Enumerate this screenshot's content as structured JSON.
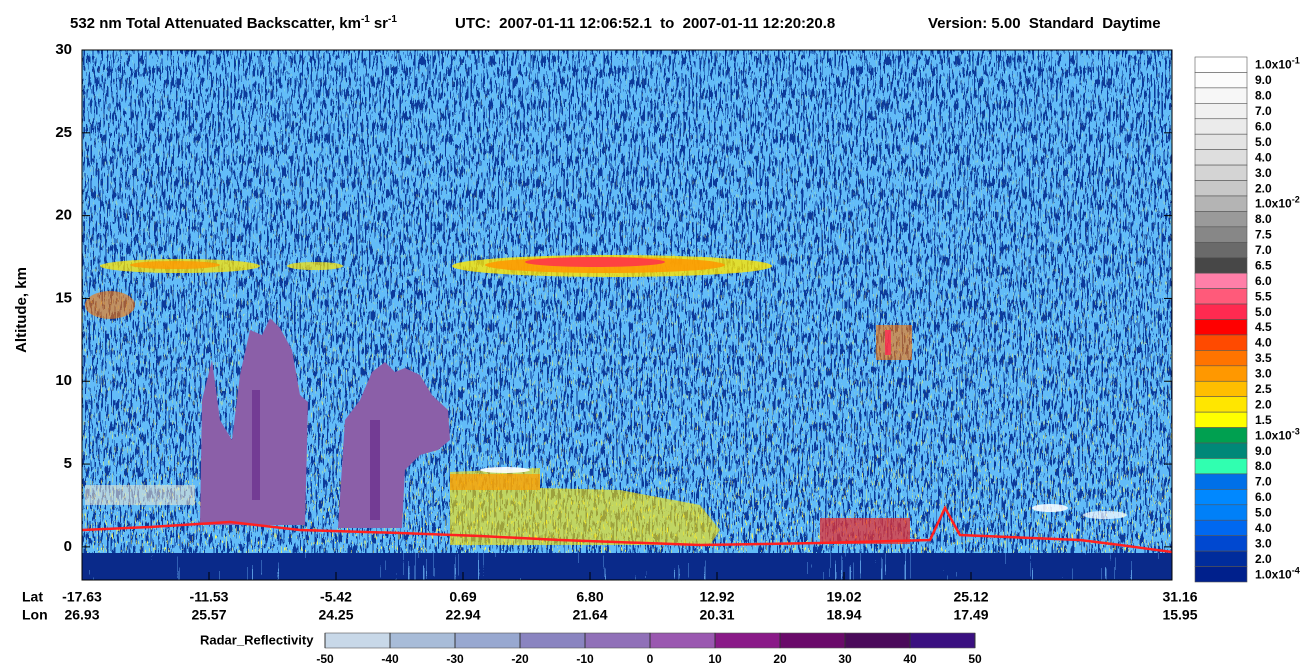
{
  "chart_data": {
    "type": "curtain",
    "title_parts": [
      "532 nm Total Attenuated Backscatter, km",
      "-1",
      "sr",
      "-1"
    ],
    "utc": "UTC:  2007-01-11 12:06:52.1  to  2007-01-11 12:20:20.8",
    "version": "Version: 5.00  Standard  Daytime",
    "ylabel": "Altitude, km",
    "ylim": [
      -2,
      30
    ],
    "yticks": [
      0,
      5,
      10,
      15,
      20,
      25,
      30
    ],
    "xtick_rows": [
      {
        "name": "Lat",
        "labels": [
          "-17.63",
          "-11.53",
          "-5.42",
          "0.69",
          "6.80",
          "12.92",
          "19.02",
          "25.12",
          "31.16"
        ]
      },
      {
        "name": "Lon",
        "labels": [
          "26.93",
          "25.57",
          "24.25",
          "22.94",
          "21.64",
          "20.31",
          "18.94",
          "17.49",
          "15.95"
        ]
      }
    ],
    "colorbar": {
      "labels": [
        {
          "base": "1.0x10",
          "exp": "-1"
        },
        "9.0",
        "8.0",
        "7.0",
        "6.0",
        "5.0",
        "4.0",
        "3.0",
        "2.0",
        {
          "base": "1.0x10",
          "exp": "-2"
        },
        "8.0",
        "7.5",
        "7.0",
        "6.5",
        "6.0",
        "5.5",
        "5.0",
        "4.5",
        "4.0",
        "3.5",
        "3.0",
        "2.5",
        "2.0",
        "1.5",
        {
          "base": "1.0x10",
          "exp": "-3"
        },
        "9.0",
        "8.0",
        "7.0",
        "6.0",
        "5.0",
        "4.0",
        "3.0",
        "2.0",
        {
          "base": "1.0x10",
          "exp": "-4"
        }
      ],
      "colors": [
        "#ffffff",
        "#fcfcfc",
        "#f7f7f7",
        "#f1f1f1",
        "#ebebeb",
        "#e4e4e4",
        "#dedede",
        "#d4d4d4",
        "#c8c8c8",
        "#b4b4b4",
        "#9a9a9a",
        "#878787",
        "#6a6a6a",
        "#474747",
        "#ff7fa8",
        "#ff5a7a",
        "#ff2a50",
        "#ff0000",
        "#ff4a00",
        "#ff7400",
        "#ff9800",
        "#ffbe00",
        "#ffe600",
        "#ffff00",
        "#00a050",
        "#008878",
        "#30ffb0",
        "#0070e8",
        "#0088ff",
        "#0080f8",
        "#0068f0",
        "#0048d0",
        "#002c9c",
        "#00208c"
      ]
    },
    "radar_colorbar": {
      "label": "Radar_Reflectivity",
      "lim": [
        -50,
        50
      ],
      "ticks": [
        -50,
        -40,
        -30,
        -20,
        -10,
        0,
        10,
        20,
        30,
        40,
        50
      ],
      "colors": [
        "#c8d8e8",
        "#a8bcd8",
        "#98a8d0",
        "#8a84c0",
        "#9070b8",
        "#9a58b0",
        "#8a1a88",
        "#6a0a6a",
        "#4a0a5a",
        "#3a1080"
      ]
    }
  }
}
